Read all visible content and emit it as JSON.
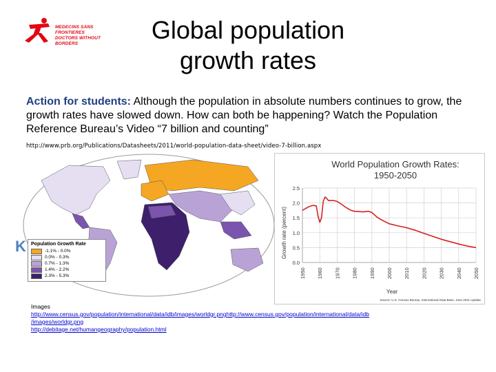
{
  "logo": {
    "line1": "MEDECINS SANS FRONTIERES",
    "line2": "DOCTORS WITHOUT BORDERS",
    "color": "#e30613"
  },
  "title": {
    "line1": "Global population",
    "line2": "growth rates"
  },
  "body": {
    "lead": "Action for students:",
    "text": " Although the population in absolute numbers continues to grow, the growth rates have slowed down. How can both be happening?  Watch the Population Reference Bureau’s Video “7 billion and counting”",
    "url": "http://www.prb.org/Publications/Datasheets/2011/world-population-data-sheet/video-7-billion.aspx"
  },
  "map": {
    "legend_title": "Population Growth Rate",
    "legend_items": [
      {
        "label": "-1.1% - 0.0%",
        "color": "#f5a623"
      },
      {
        "label": "0.0% - 0.3%",
        "color": "#e6dff2"
      },
      {
        "label": "0.7% - 1.3%",
        "color": "#b9a3d6"
      },
      {
        "label": "1.4% - 2.2%",
        "color": "#7a54ad"
      },
      {
        "label": "2.3% - 5.3%",
        "color": "#3d1f6b"
      }
    ],
    "stray_letter": "K"
  },
  "chart_data": {
    "type": "line",
    "title": "World Population Growth Rates:",
    "subtitle": "1950-2050",
    "xlabel": "Year",
    "ylabel": "Growth rate (percent)",
    "x_ticks": [
      "1950",
      "1960",
      "1970",
      "1980",
      "1990",
      "2000",
      "2010",
      "2020",
      "2030",
      "2040",
      "2050"
    ],
    "y_ticks": [
      "0.0",
      "0.5",
      "1.0",
      "1.5",
      "2.0",
      "2.5"
    ],
    "ylim": [
      0,
      2.5
    ],
    "xlim": [
      1950,
      2050
    ],
    "x": [
      1950,
      1952,
      1954,
      1956,
      1958,
      1959,
      1960,
      1961,
      1962,
      1963,
      1964,
      1965,
      1968,
      1970,
      1972,
      1975,
      1978,
      1980,
      1985,
      1988,
      1990,
      1993,
      1995,
      2000,
      2005,
      2010,
      2015,
      2020,
      2025,
      2030,
      2035,
      2040,
      2045,
      2050
    ],
    "values": [
      1.75,
      1.82,
      1.88,
      1.92,
      1.9,
      1.55,
      1.35,
      1.5,
      2.05,
      2.2,
      2.15,
      2.08,
      2.08,
      2.05,
      1.98,
      1.85,
      1.75,
      1.72,
      1.7,
      1.72,
      1.68,
      1.52,
      1.45,
      1.3,
      1.23,
      1.17,
      1.08,
      0.98,
      0.88,
      0.78,
      0.7,
      0.62,
      0.55,
      0.5
    ],
    "color": "#d62020",
    "grid": true,
    "source": "Source: U.S. Census Bureau, International Data Base, June 2011 Update."
  },
  "credits": {
    "heading": "Images",
    "line1": "http://www.census.gov/population/international/data/idb/images/worldgr.pnghttp://www.census.gov/population/international/data/idb",
    "line2": "/images/worldgr.png",
    "line3": "http://debitage.net/humangeography/population.html"
  }
}
